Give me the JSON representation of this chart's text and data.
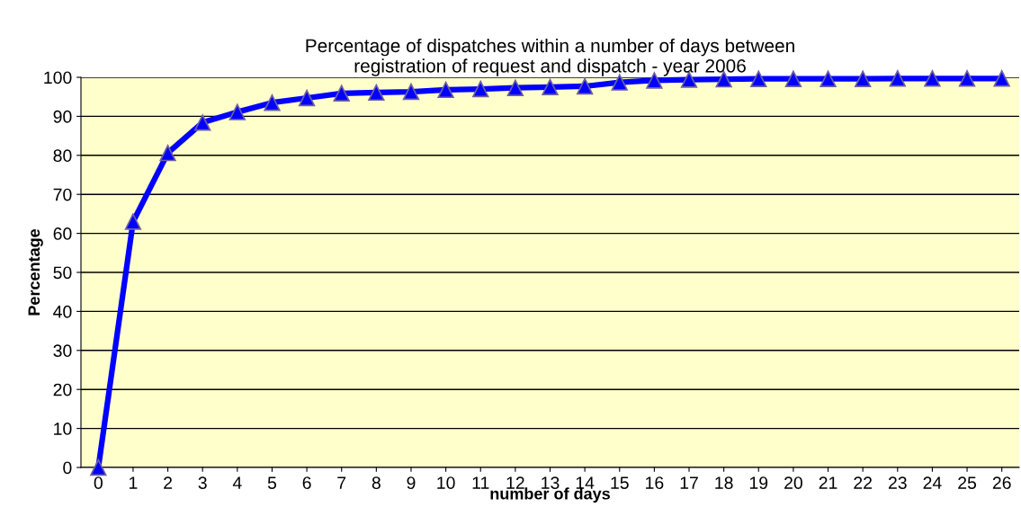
{
  "chart_data": {
    "type": "line",
    "title": "Percentage of dispatches within a number of days between\nregistration of request and dispatch - year 2006",
    "xlabel": "number of days",
    "ylabel": "Percentage",
    "categories": [
      "0",
      "1",
      "2",
      "3",
      "4",
      "5",
      "6",
      "7",
      "8",
      "9",
      "10",
      "11",
      "12",
      "13",
      "14",
      "15",
      "16",
      "17",
      "18",
      "19",
      "20",
      "21",
      "22",
      "23",
      "24",
      "25",
      "26"
    ],
    "series": [
      {
        "color": "#0000ff",
        "values": [
          0,
          63,
          80.6,
          88.4,
          91.1,
          93.5,
          94.7,
          95.9,
          96.1,
          96.3,
          96.8,
          97.0,
          97.3,
          97.5,
          97.7,
          98.7,
          99.2,
          99.4,
          99.5,
          99.6,
          99.6,
          99.6,
          99.6,
          99.7,
          99.7,
          99.7,
          99.7
        ]
      }
    ],
    "ylim": [
      0,
      100
    ],
    "yticks": [
      0,
      10,
      20,
      30,
      40,
      50,
      60,
      70,
      80,
      90,
      100
    ],
    "grid": "y",
    "marker": "triangle",
    "line_style": "solid",
    "legend": false
  }
}
